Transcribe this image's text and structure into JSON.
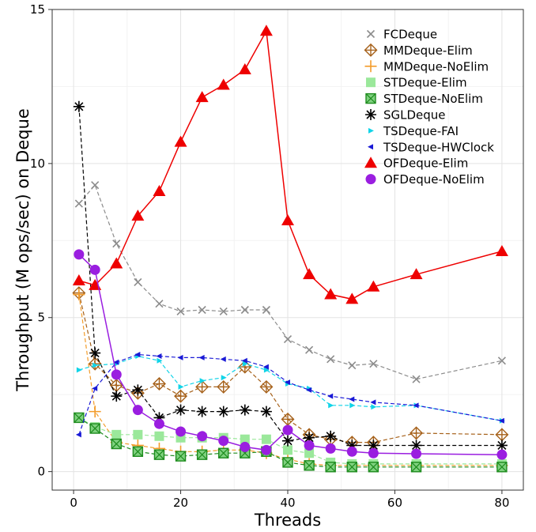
{
  "chart_data": {
    "type": "line",
    "title": "",
    "xlabel": "Threads",
    "ylabel": "Throughput (M ops/sec) on Deque",
    "xlim": [
      -4,
      84
    ],
    "ylim": [
      -0.6,
      15
    ],
    "xticks": [
      0,
      20,
      40,
      60,
      80
    ],
    "yticks": [
      0,
      5,
      10,
      15
    ],
    "grid": true,
    "legend_position": "top-right",
    "series": [
      {
        "name": "FCDeque",
        "color": "#8c8c8c",
        "marker": "x",
        "linestyle": "dashed",
        "x": [
          1,
          4,
          8,
          12,
          16,
          20,
          24,
          28,
          32,
          36,
          40,
          44,
          48,
          52,
          56,
          64,
          80
        ],
        "y": [
          8.7,
          9.3,
          7.4,
          6.15,
          5.45,
          5.2,
          5.25,
          5.2,
          5.25,
          5.25,
          4.3,
          3.95,
          3.65,
          3.45,
          3.5,
          3.0,
          3.6
        ]
      },
      {
        "name": "MMDeque-Elim",
        "color": "#a6611a",
        "marker": "diamond-plus",
        "linestyle": "dashed",
        "x": [
          1,
          4,
          8,
          12,
          16,
          20,
          24,
          28,
          32,
          36,
          40,
          44,
          48,
          52,
          56,
          64,
          80
        ],
        "y": [
          5.8,
          3.5,
          2.8,
          2.55,
          2.85,
          2.45,
          2.75,
          2.75,
          3.4,
          2.75,
          1.7,
          1.2,
          1.05,
          0.95,
          0.95,
          1.25,
          1.2
        ]
      },
      {
        "name": "MMDeque-NoElim",
        "color": "#f39c2b",
        "marker": "plus",
        "linestyle": "dashed",
        "x": [
          1,
          4,
          8,
          12,
          16,
          20,
          24,
          28,
          32,
          36,
          40,
          44,
          48,
          52,
          56,
          64,
          80
        ],
        "y": [
          5.75,
          1.95,
          0.95,
          0.85,
          0.75,
          0.65,
          0.65,
          0.7,
          0.7,
          0.6,
          0.4,
          0.25,
          0.2,
          0.2,
          0.2,
          0.2,
          0.2
        ]
      },
      {
        "name": "STDeque-Elim",
        "color": "#9be89b",
        "marker": "square",
        "linestyle": "dashed",
        "x": [
          1,
          4,
          8,
          12,
          16,
          20,
          24,
          28,
          32,
          36,
          40,
          44,
          48,
          52,
          56,
          64,
          80
        ],
        "y": [
          1.75,
          1.45,
          1.2,
          1.2,
          1.15,
          1.1,
          1.1,
          1.1,
          1.05,
          1.05,
          0.7,
          0.6,
          0.3,
          0.25,
          0.25,
          0.25,
          0.25
        ]
      },
      {
        "name": "STDeque-NoElim",
        "color": "#1e8c1e",
        "marker": "square-x",
        "linestyle": "dashed",
        "x": [
          1,
          4,
          8,
          12,
          16,
          20,
          24,
          28,
          32,
          36,
          40,
          44,
          48,
          52,
          56,
          64,
          80
        ],
        "y": [
          1.75,
          1.4,
          0.9,
          0.65,
          0.55,
          0.5,
          0.55,
          0.6,
          0.6,
          0.65,
          0.3,
          0.2,
          0.15,
          0.15,
          0.15,
          0.15,
          0.15
        ]
      },
      {
        "name": "SGLDeque",
        "color": "#000000",
        "marker": "asterisk",
        "linestyle": "dashed",
        "x": [
          1,
          4,
          8,
          12,
          16,
          20,
          24,
          28,
          32,
          36,
          40,
          44,
          48,
          52,
          56,
          64,
          80
        ],
        "y": [
          11.85,
          3.85,
          2.45,
          2.65,
          1.75,
          2.0,
          1.95,
          1.95,
          2.0,
          1.95,
          1.0,
          1.1,
          1.15,
          0.85,
          0.85,
          0.85,
          0.85
        ]
      },
      {
        "name": "TSDeque-FAI",
        "color": "#11d4e8",
        "marker": "tri-right",
        "linestyle": "dashed",
        "x": [
          1,
          4,
          8,
          12,
          16,
          20,
          24,
          28,
          32,
          36,
          40,
          44,
          48,
          52,
          56,
          64,
          80
        ],
        "y": [
          3.3,
          3.45,
          3.5,
          3.75,
          3.6,
          2.75,
          2.95,
          3.05,
          3.5,
          3.3,
          2.85,
          2.7,
          2.15,
          2.15,
          2.1,
          2.15,
          1.65
        ]
      },
      {
        "name": "TSDeque-HWClock",
        "color": "#1a1ad6",
        "marker": "tri-left",
        "linestyle": "dashed",
        "x": [
          1,
          4,
          8,
          12,
          16,
          20,
          24,
          28,
          32,
          36,
          40,
          44,
          48,
          52,
          56,
          64,
          80
        ],
        "y": [
          1.2,
          2.7,
          3.55,
          3.8,
          3.75,
          3.7,
          3.7,
          3.65,
          3.6,
          3.4,
          2.9,
          2.65,
          2.45,
          2.35,
          2.25,
          2.15,
          1.65
        ]
      },
      {
        "name": "OFDeque-Elim",
        "color": "#ee0000",
        "marker": "triangle",
        "linestyle": "solid",
        "x": [
          1,
          4,
          8,
          12,
          16,
          20,
          24,
          28,
          32,
          36,
          40,
          44,
          48,
          52,
          56,
          64,
          80
        ],
        "y": [
          6.2,
          6.05,
          6.75,
          8.3,
          9.1,
          10.7,
          12.15,
          12.55,
          13.05,
          14.3,
          8.15,
          6.4,
          5.75,
          5.6,
          6.0,
          6.4,
          7.15
        ]
      },
      {
        "name": "OFDeque-NoElim",
        "color": "#9a1ee0",
        "marker": "circle",
        "linestyle": "solid",
        "x": [
          1,
          4,
          8,
          12,
          16,
          20,
          24,
          28,
          32,
          36,
          40,
          44,
          48,
          52,
          56,
          64,
          80
        ],
        "y": [
          7.05,
          6.55,
          3.15,
          2.0,
          1.55,
          1.3,
          1.15,
          1.0,
          0.8,
          0.7,
          1.35,
          0.85,
          0.75,
          0.65,
          0.6,
          0.58,
          0.55
        ]
      }
    ]
  }
}
